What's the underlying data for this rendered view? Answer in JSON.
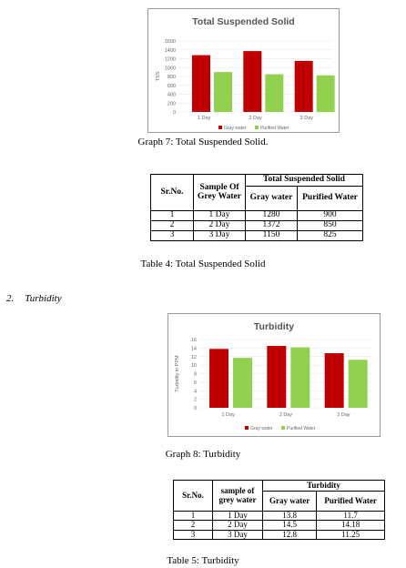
{
  "graph7": {
    "caption": "Graph 7: Total Suspended Solid.",
    "chart_data": {
      "type": "bar",
      "title": "Total Suspended Solid",
      "ylabel": "TSS",
      "xlabel": "",
      "categories": [
        "1 Day",
        "2 Day",
        "3 Day"
      ],
      "series": [
        {
          "name": "Gray water",
          "values": [
            1280,
            1372,
            1150
          ],
          "color": "#c00000"
        },
        {
          "name": "Purified Water",
          "values": [
            900,
            850,
            825
          ],
          "color": "#92d050"
        }
      ],
      "ylim": [
        0,
        1600
      ],
      "yticks": [
        0,
        200,
        400,
        600,
        800,
        1000,
        1200,
        1400,
        1600
      ],
      "grid": true,
      "legend": "bottom"
    }
  },
  "table4": {
    "caption": "Table 4: Total Suspended Solid",
    "headers": {
      "srno": "Sr.No.",
      "sample": "Sample Of Grey Water",
      "group": "Total Suspended Solid",
      "col1": "Gray water",
      "col2": "Purified Water"
    },
    "rows": [
      {
        "sr": "1",
        "sample": "1 Day",
        "v1": "1280",
        "v2": "900"
      },
      {
        "sr": "2",
        "sample": "2 Day",
        "v1": "1372",
        "v2": "850"
      },
      {
        "sr": "3",
        "sample": "3 Day",
        "v1": "1150",
        "v2": "825"
      }
    ]
  },
  "section": {
    "number": "2.",
    "title": "Turbidity"
  },
  "graph8": {
    "caption": "Graph 8: Turbidity",
    "chart_data": {
      "type": "bar",
      "title": "Turbidity",
      "ylabel": "Turbidity in PPM",
      "xlabel": "",
      "categories": [
        "1 Day",
        "2 Day",
        "3 Day"
      ],
      "series": [
        {
          "name": "Gray water",
          "values": [
            13.8,
            14.5,
            12.8
          ],
          "color": "#c00000"
        },
        {
          "name": "Purified Water",
          "values": [
            11.7,
            14.18,
            11.25
          ],
          "color": "#92d050"
        }
      ],
      "ylim": [
        0,
        16
      ],
      "yticks": [
        0,
        2,
        4,
        6,
        8,
        10,
        12,
        14,
        16
      ],
      "grid": true,
      "legend": "bottom"
    }
  },
  "table5": {
    "caption": "Table 5: Turbidity",
    "headers": {
      "srno": "Sr.No.",
      "sample": "sample of grey water",
      "group": "Turbidity",
      "col1": "Gray water",
      "col2": "Purified Water"
    },
    "rows": [
      {
        "sr": "1",
        "sample": "1 Day",
        "v1": "13.8",
        "v2": "11.7"
      },
      {
        "sr": "2",
        "sample": "2 Day",
        "v1": "14.5",
        "v2": "14.18"
      },
      {
        "sr": "3",
        "sample": "3 Day",
        "v1": "12.8",
        "v2": "11.25"
      }
    ]
  }
}
